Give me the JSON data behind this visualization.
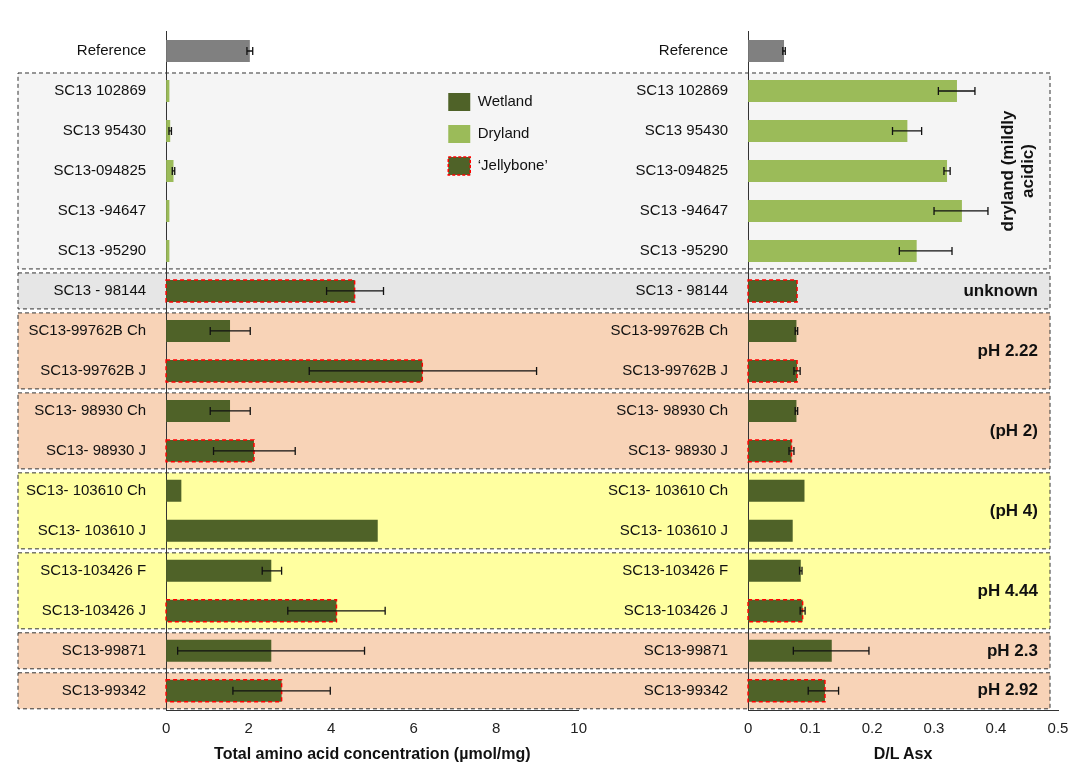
{
  "chart_data": [
    {
      "type": "bar",
      "orientation": "horizontal",
      "stacked": true,
      "xlabel": "Total amino acid concentration (µmol/mg)",
      "xlim": [
        0,
        10
      ],
      "xticks": [
        0,
        2,
        4,
        6,
        8,
        10
      ],
      "grid": false,
      "legend": "top right",
      "categories": [
        "Reference",
        "SC13 102869",
        "SC13 95430",
        "SC13-094825",
        "SC13 -94647",
        "SC13 -95290",
        "SC13 - 98144",
        "SC13-99762B Ch",
        "SC13-99762B J",
        "SC13- 98930 Ch",
        "SC13- 98930 J",
        "SC13- 103610 Ch",
        "SC13- 103610 J",
        "SC13-103426 F",
        "SC13-103426 J",
        "SC13-99871",
        "SC13-99342"
      ],
      "series": [
        {
          "color": "#808080",
          "values": [
            2.03,
            null,
            null,
            null,
            null,
            null,
            null,
            null,
            null,
            null,
            null,
            null,
            null,
            null,
            null,
            null,
            null
          ],
          "errors": [
            0.07,
            null,
            null,
            null,
            null,
            null,
            null,
            null,
            null,
            null,
            null,
            null,
            null,
            null,
            null,
            null,
            null
          ]
        },
        {
          "name": "Wetland",
          "color": "#4f6228",
          "values": [
            null,
            null,
            null,
            null,
            null,
            null,
            null,
            1.55,
            null,
            1.55,
            null,
            0.37,
            5.13,
            2.55,
            null,
            2.55,
            null
          ],
          "errors": [
            null,
            null,
            null,
            null,
            null,
            null,
            null,
            [
              1.07,
              2.04
            ],
            null,
            [
              1.07,
              2.04
            ],
            null,
            null,
            null,
            [
              2.33,
              2.8
            ],
            null,
            [
              0.28,
              4.81
            ],
            null
          ]
        },
        {
          "name": "Dryland",
          "color": "#9bbb59",
          "values": [
            null,
            0.08,
            0.1,
            0.18,
            0.08,
            0.08,
            null,
            null,
            null,
            null,
            null,
            null,
            null,
            null,
            null,
            null,
            null
          ],
          "errors": [
            null,
            null,
            0.03,
            0.03,
            null,
            null,
            null,
            null,
            null,
            null,
            null,
            null,
            null,
            null,
            null,
            null,
            null
          ]
        },
        {
          "name": "‘Jellybone’",
          "color": "#4f6228",
          "line_style": "dashed",
          "values": [
            null,
            null,
            null,
            null,
            null,
            null,
            4.57,
            null,
            6.21,
            null,
            2.13,
            null,
            null,
            null,
            4.13,
            null,
            2.8
          ],
          "errors": [
            null,
            null,
            null,
            null,
            null,
            null,
            [
              3.89,
              5.27
            ],
            null,
            [
              3.47,
              8.98
            ],
            null,
            [
              1.15,
              3.13
            ],
            null,
            null,
            null,
            [
              2.95,
              5.31
            ],
            null,
            [
              1.62,
              3.98
            ]
          ]
        }
      ],
      "bands": [
        {
          "axis": "y",
          "from": "SC13 102869",
          "to": "SC13 -95290",
          "color": "#f5f5f5"
        },
        {
          "axis": "y",
          "from": "SC13 - 98144",
          "to": "SC13 - 98144",
          "color": "#e6e6e6"
        },
        {
          "axis": "y",
          "from": "SC13-99762B Ch",
          "to": "SC13-99762B J",
          "color": "#f8d3b7"
        },
        {
          "axis": "y",
          "from": "SC13- 98930 Ch",
          "to": "SC13- 98930 J",
          "color": "#f8d3b7"
        },
        {
          "axis": "y",
          "from": "SC13- 103610 Ch",
          "to": "SC13- 103610 J",
          "color": "#ffffa0"
        },
        {
          "axis": "y",
          "from": "SC13-103426 F",
          "to": "SC13-103426 J",
          "color": "#ffffa0"
        },
        {
          "axis": "y",
          "from": "SC13-99871",
          "to": "SC13-99871",
          "color": "#f8d3b7"
        },
        {
          "axis": "y",
          "from": "SC13-99342",
          "to": "SC13-99342",
          "color": "#f8d3b7"
        }
      ]
    },
    {
      "type": "bar",
      "orientation": "horizontal",
      "stacked": true,
      "xlabel": "D/L Asx",
      "xlim": [
        0,
        0.5
      ],
      "xticks": [
        0,
        0.1,
        0.2,
        0.3,
        0.4,
        0.5
      ],
      "grid": false,
      "categories": [
        "Reference",
        "SC13 102869",
        "SC13 95430",
        "SC13-094825",
        "SC13 -94647",
        "SC13 -95290",
        "SC13 - 98144",
        "SC13-99762B Ch",
        "SC13-99762B J",
        "SC13- 98930 Ch",
        "SC13- 98930 J",
        "SC13- 103610 Ch",
        "SC13- 103610 J",
        "SC13-103426 F",
        "SC13-103426 J",
        "SC13-99871",
        "SC13-99342"
      ],
      "series": [
        {
          "color": "#808080",
          "values": [
            0.058,
            null,
            null,
            null,
            null,
            null,
            null,
            null,
            null,
            null,
            null,
            null,
            null,
            null,
            null,
            null,
            null
          ],
          "errors": [
            0.002,
            null,
            null,
            null,
            null,
            null,
            null,
            null,
            null,
            null,
            null,
            null,
            null,
            null,
            null,
            null,
            null
          ]
        },
        {
          "color": "#4f6228",
          "values": [
            null,
            null,
            null,
            null,
            null,
            null,
            null,
            0.078,
            null,
            0.078,
            null,
            0.091,
            0.072,
            0.085,
            null,
            0.135,
            null
          ],
          "errors": [
            null,
            null,
            null,
            null,
            null,
            null,
            null,
            0.002,
            null,
            0.002,
            null,
            null,
            null,
            0.002,
            null,
            [
              0.073,
              0.195
            ],
            null
          ]
        },
        {
          "color": "#9bbb59",
          "values": [
            null,
            0.337,
            0.257,
            0.321,
            0.345,
            0.272,
            null,
            null,
            null,
            null,
            null,
            null,
            null,
            null,
            null,
            null,
            null
          ],
          "errors": [
            null,
            [
              0.307,
              0.366
            ],
            [
              0.233,
              0.28
            ],
            0.005,
            [
              0.3,
              0.387
            ],
            [
              0.244,
              0.329
            ],
            null,
            null,
            null,
            null,
            null,
            null,
            null,
            null,
            null,
            null,
            null
          ]
        },
        {
          "color": "#4f6228",
          "line_style": "dashed",
          "values": [
            null,
            null,
            null,
            null,
            null,
            null,
            0.079,
            null,
            0.079,
            null,
            0.07,
            null,
            null,
            null,
            0.088,
            null,
            0.124
          ],
          "errors": [
            null,
            null,
            null,
            null,
            null,
            null,
            null,
            null,
            0.005,
            null,
            0.004,
            null,
            null,
            null,
            0.004,
            null,
            [
              0.097,
              0.146
            ]
          ]
        }
      ],
      "bands": [
        {
          "axis": "y",
          "from": "SC13 102869",
          "to": "SC13 -95290",
          "color": "#f5f5f5",
          "label": "dryland (mildly acidic)"
        },
        {
          "axis": "y",
          "from": "SC13 - 98144",
          "to": "SC13 - 98144",
          "color": "#e6e6e6",
          "label": "unknown"
        },
        {
          "axis": "y",
          "from": "SC13-99762B Ch",
          "to": "SC13-99762B J",
          "color": "#f8d3b7",
          "label": "pH 2.22"
        },
        {
          "axis": "y",
          "from": "SC13- 98930 Ch",
          "to": "SC13- 98930 J",
          "color": "#f8d3b7",
          "label": "(pH 2)"
        },
        {
          "axis": "y",
          "from": "SC13- 103610 Ch",
          "to": "SC13- 103610 J",
          "color": "#ffffa0",
          "label": "(pH 4)"
        },
        {
          "axis": "y",
          "from": "SC13-103426 F",
          "to": "SC13-103426 J",
          "color": "#ffffa0",
          "label": "pH 4.44"
        },
        {
          "axis": "y",
          "from": "SC13-99871",
          "to": "SC13-99871",
          "color": "#f8d3b7",
          "label": "pH 2.3"
        },
        {
          "axis": "y",
          "from": "SC13-99342",
          "to": "SC13-99342",
          "color": "#f8d3b7",
          "label": "pH 2.92"
        }
      ]
    }
  ]
}
